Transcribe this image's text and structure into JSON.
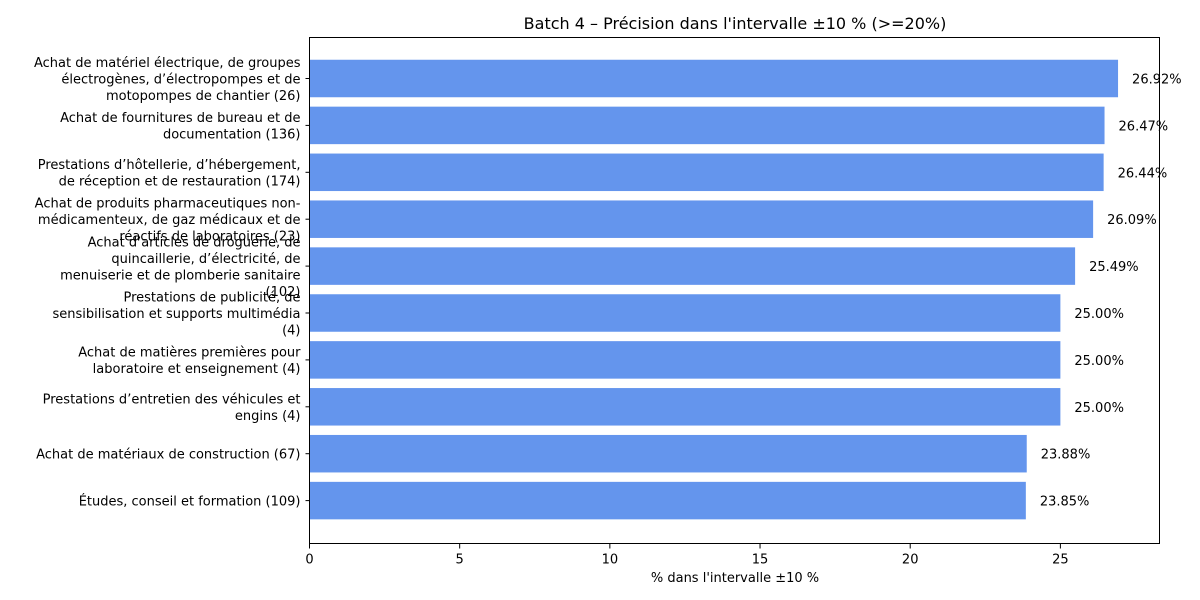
{
  "chart_data": {
    "type": "bar",
    "orientation": "horizontal",
    "title": "Batch 4 – Précision dans l'intervalle ±10 % (>=20%)",
    "xlabel": "% dans l'intervalle ±10 %",
    "ylabel": "",
    "xlim": [
      0,
      28.3
    ],
    "x_ticks": [
      "0",
      "5",
      "10",
      "15",
      "20",
      "25"
    ],
    "grid": false,
    "legend": "none",
    "bar_color": "#6495ED",
    "categories": [
      [
        "Achat de matériel électrique, de groupes",
        "électrogènes, d’électropompes et de",
        "motopompes de chantier (26)"
      ],
      [
        "Achat de fournitures de bureau et de",
        "documentation (136)"
      ],
      [
        "Prestations d’hôtellerie, d’hébergement,",
        "de réception et de restauration (174)"
      ],
      [
        "Achat de produits pharmaceutiques non-",
        "médicamenteux, de gaz médicaux et de",
        "réactifs de laboratoires (23)"
      ],
      [
        "Achat d’articles de droguerie, de",
        "quincaillerie, d’électricité, de",
        "menuiserie et de plomberie sanitaire",
        "(102)"
      ],
      [
        "Prestations de publicité, de",
        "sensibilisation et supports multimédia",
        "(4)"
      ],
      [
        "Achat de matières premières pour",
        "laboratoire et enseignement (4)"
      ],
      [
        "Prestations d’entretien des véhicules et",
        "engins (4)"
      ],
      [
        "Achat de matériaux de construction (67)"
      ],
      [
        "Études, conseil et formation (109)"
      ]
    ],
    "values": [
      26.92,
      26.47,
      26.44,
      26.09,
      25.49,
      25.0,
      25.0,
      25.0,
      23.88,
      23.85
    ],
    "value_labels": [
      "26.92%",
      "26.47%",
      "26.44%",
      "26.09%",
      "25.49%",
      "25.00%",
      "25.00%",
      "25.00%",
      "23.88%",
      "23.85%"
    ]
  }
}
